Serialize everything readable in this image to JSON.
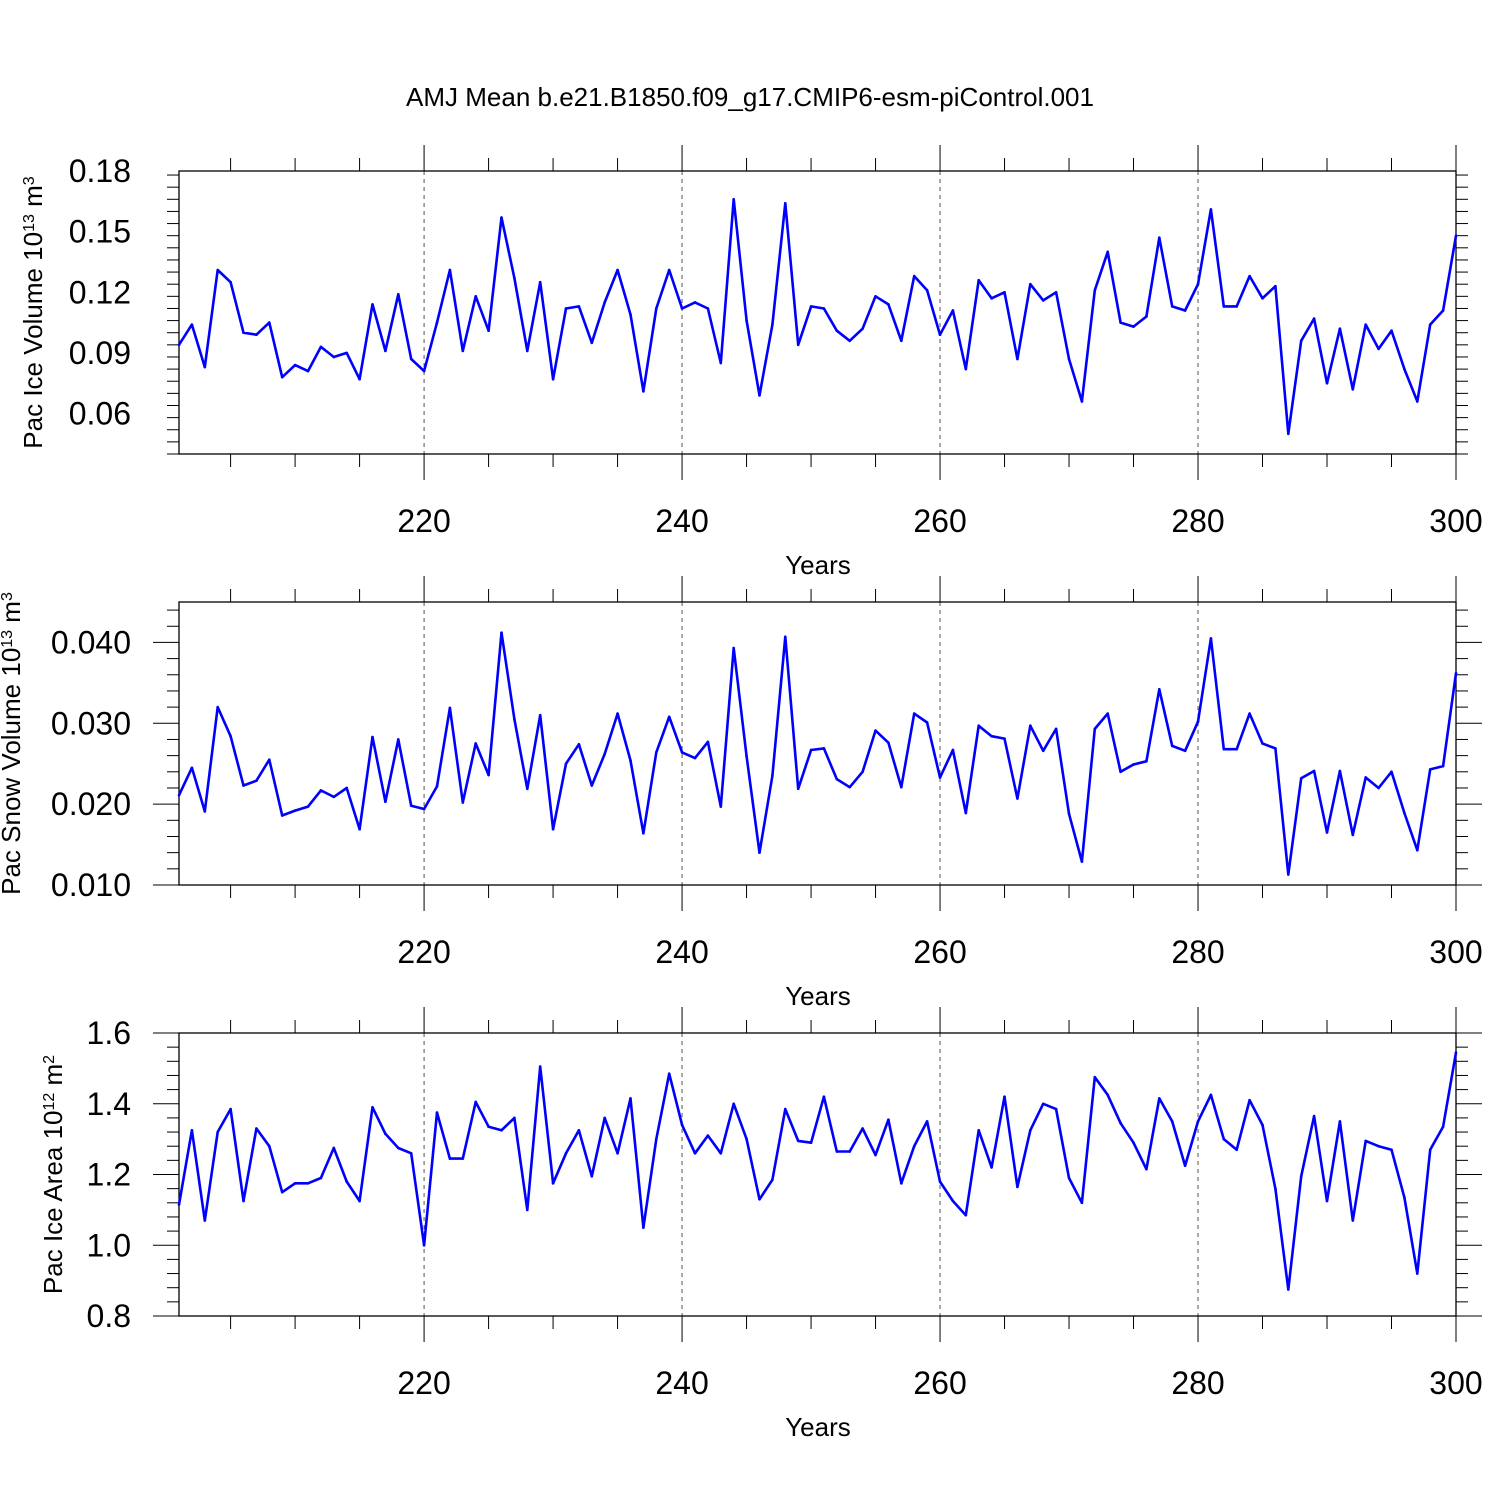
{
  "title": "AMJ Mean b.e21.B1850.f09_g17.CMIP6-esm-piControl.001",
  "colors": {
    "line": "#0000ff",
    "axis": "#000000",
    "grid": "#555555"
  },
  "chart_data": [
    {
      "type": "line",
      "title": "AMJ Mean b.e21.B1850.f09_g17.CMIP6-esm-piControl.001",
      "xlabel": "Years",
      "ylabel": "Pac Ice Volume 10^13 m^3",
      "ylabel_parts": [
        "Pac Ice Volume 10",
        "13",
        " m",
        "3"
      ],
      "xlim": [
        201,
        300
      ],
      "ylim": [
        0.04,
        0.18
      ],
      "xticks": [
        220,
        240,
        260,
        280,
        300
      ],
      "xtick_labels": [
        "220",
        "240",
        "260",
        "280",
        "300"
      ],
      "yticks": [
        0.06,
        0.09,
        0.12,
        0.15,
        0.18
      ],
      "ytick_labels": [
        "0.06",
        "0.09",
        "0.12",
        "0.15",
        "0.18"
      ],
      "grid": "vertical dashed at major x ticks",
      "x_start": 201,
      "values": [
        0.094,
        0.104,
        0.083,
        0.131,
        0.125,
        0.1,
        0.099,
        0.105,
        0.078,
        0.084,
        0.081,
        0.093,
        0.088,
        0.09,
        0.077,
        0.114,
        0.091,
        0.119,
        0.087,
        0.081,
        0.105,
        0.131,
        0.091,
        0.118,
        0.101,
        0.157,
        0.127,
        0.091,
        0.125,
        0.077,
        0.112,
        0.113,
        0.095,
        0.115,
        0.131,
        0.109,
        0.071,
        0.112,
        0.131,
        0.112,
        0.115,
        0.112,
        0.085,
        0.166,
        0.106,
        0.069,
        0.104,
        0.164,
        0.094,
        0.113,
        0.112,
        0.101,
        0.096,
        0.102,
        0.118,
        0.114,
        0.096,
        0.128,
        0.121,
        0.099,
        0.111,
        0.082,
        0.126,
        0.117,
        0.12,
        0.087,
        0.124,
        0.116,
        0.12,
        0.087,
        0.066,
        0.121,
        0.14,
        0.105,
        0.103,
        0.108,
        0.147,
        0.113,
        0.111,
        0.124,
        0.161,
        0.113,
        0.113,
        0.128,
        0.117,
        0.123,
        0.05,
        0.096,
        0.107,
        0.075,
        0.102,
        0.072,
        0.104,
        0.092,
        0.101,
        0.082,
        0.066,
        0.104,
        0.111,
        0.148
      ]
    },
    {
      "type": "line",
      "xlabel": "Years",
      "ylabel": "Pac Snow Volume 10^13 m^3",
      "ylabel_parts": [
        "Pac Snow Volume 10",
        "13",
        " m",
        "3"
      ],
      "xlim": [
        201,
        300
      ],
      "ylim": [
        0.01,
        0.045
      ],
      "xticks": [
        220,
        240,
        260,
        280,
        300
      ],
      "xtick_labels": [
        "220",
        "240",
        "260",
        "280",
        "300"
      ],
      "yticks": [
        0.01,
        0.02,
        0.03,
        0.04
      ],
      "ytick_labels": [
        "0.010",
        "0.020",
        "0.030",
        "0.040"
      ],
      "grid": "vertical dashed at major x ticks",
      "x_start": 201,
      "values": [
        0.0211,
        0.0245,
        0.0191,
        0.032,
        0.0284,
        0.0223,
        0.0229,
        0.0255,
        0.0186,
        0.0192,
        0.0197,
        0.0217,
        0.0209,
        0.022,
        0.0169,
        0.0283,
        0.0203,
        0.028,
        0.0198,
        0.0194,
        0.0222,
        0.0319,
        0.0202,
        0.0275,
        0.0236,
        0.0412,
        0.0305,
        0.0219,
        0.031,
        0.0169,
        0.025,
        0.0274,
        0.0223,
        0.0262,
        0.0312,
        0.0254,
        0.0164,
        0.0264,
        0.0308,
        0.0264,
        0.0257,
        0.0277,
        0.0197,
        0.0393,
        0.0259,
        0.014,
        0.0235,
        0.0407,
        0.0219,
        0.0267,
        0.0269,
        0.0231,
        0.0221,
        0.024,
        0.0291,
        0.0276,
        0.0221,
        0.0312,
        0.0301,
        0.0233,
        0.0267,
        0.0189,
        0.0297,
        0.0284,
        0.0281,
        0.0207,
        0.0297,
        0.0266,
        0.0293,
        0.0188,
        0.0129,
        0.0293,
        0.0312,
        0.024,
        0.0249,
        0.0253,
        0.0342,
        0.0272,
        0.0266,
        0.0302,
        0.0405,
        0.0268,
        0.0268,
        0.0312,
        0.0275,
        0.0269,
        0.0113,
        0.0232,
        0.0241,
        0.0165,
        0.0241,
        0.0162,
        0.0233,
        0.022,
        0.024,
        0.0189,
        0.0143,
        0.0243,
        0.0247,
        0.0362
      ]
    },
    {
      "type": "line",
      "xlabel": "Years",
      "ylabel": "Pac Ice Area 10^12 m^2",
      "ylabel_parts": [
        "Pac Ice Area 10",
        "12",
        " m",
        "2"
      ],
      "xlim": [
        201,
        300
      ],
      "ylim": [
        0.8,
        1.6
      ],
      "xticks": [
        220,
        240,
        260,
        280,
        300
      ],
      "xtick_labels": [
        "220",
        "240",
        "260",
        "280",
        "300"
      ],
      "yticks": [
        0.8,
        1.0,
        1.2,
        1.4,
        1.6
      ],
      "ytick_labels": [
        "0.8",
        "1.0",
        "1.2",
        "1.4",
        "1.6"
      ],
      "grid": "vertical dashed at major x ticks",
      "x_start": 201,
      "values": [
        1.115,
        1.325,
        1.07,
        1.32,
        1.385,
        1.125,
        1.33,
        1.28,
        1.15,
        1.175,
        1.175,
        1.19,
        1.275,
        1.18,
        1.125,
        1.39,
        1.315,
        1.275,
        1.26,
        1.0,
        1.375,
        1.245,
        1.245,
        1.405,
        1.335,
        1.325,
        1.36,
        1.1,
        1.505,
        1.175,
        1.26,
        1.325,
        1.195,
        1.36,
        1.26,
        1.415,
        1.05,
        1.3,
        1.485,
        1.34,
        1.26,
        1.31,
        1.26,
        1.4,
        1.3,
        1.13,
        1.185,
        1.385,
        1.295,
        1.29,
        1.42,
        1.265,
        1.265,
        1.33,
        1.255,
        1.355,
        1.175,
        1.28,
        1.35,
        1.18,
        1.125,
        1.085,
        1.325,
        1.22,
        1.42,
        1.165,
        1.325,
        1.4,
        1.385,
        1.19,
        1.12,
        1.475,
        1.425,
        1.345,
        1.29,
        1.215,
        1.415,
        1.35,
        1.225,
        1.35,
        1.425,
        1.3,
        1.27,
        1.41,
        1.34,
        1.16,
        0.875,
        1.195,
        1.365,
        1.125,
        1.35,
        1.07,
        1.295,
        1.28,
        1.27,
        1.135,
        0.92,
        1.27,
        1.335,
        1.545
      ]
    }
  ]
}
